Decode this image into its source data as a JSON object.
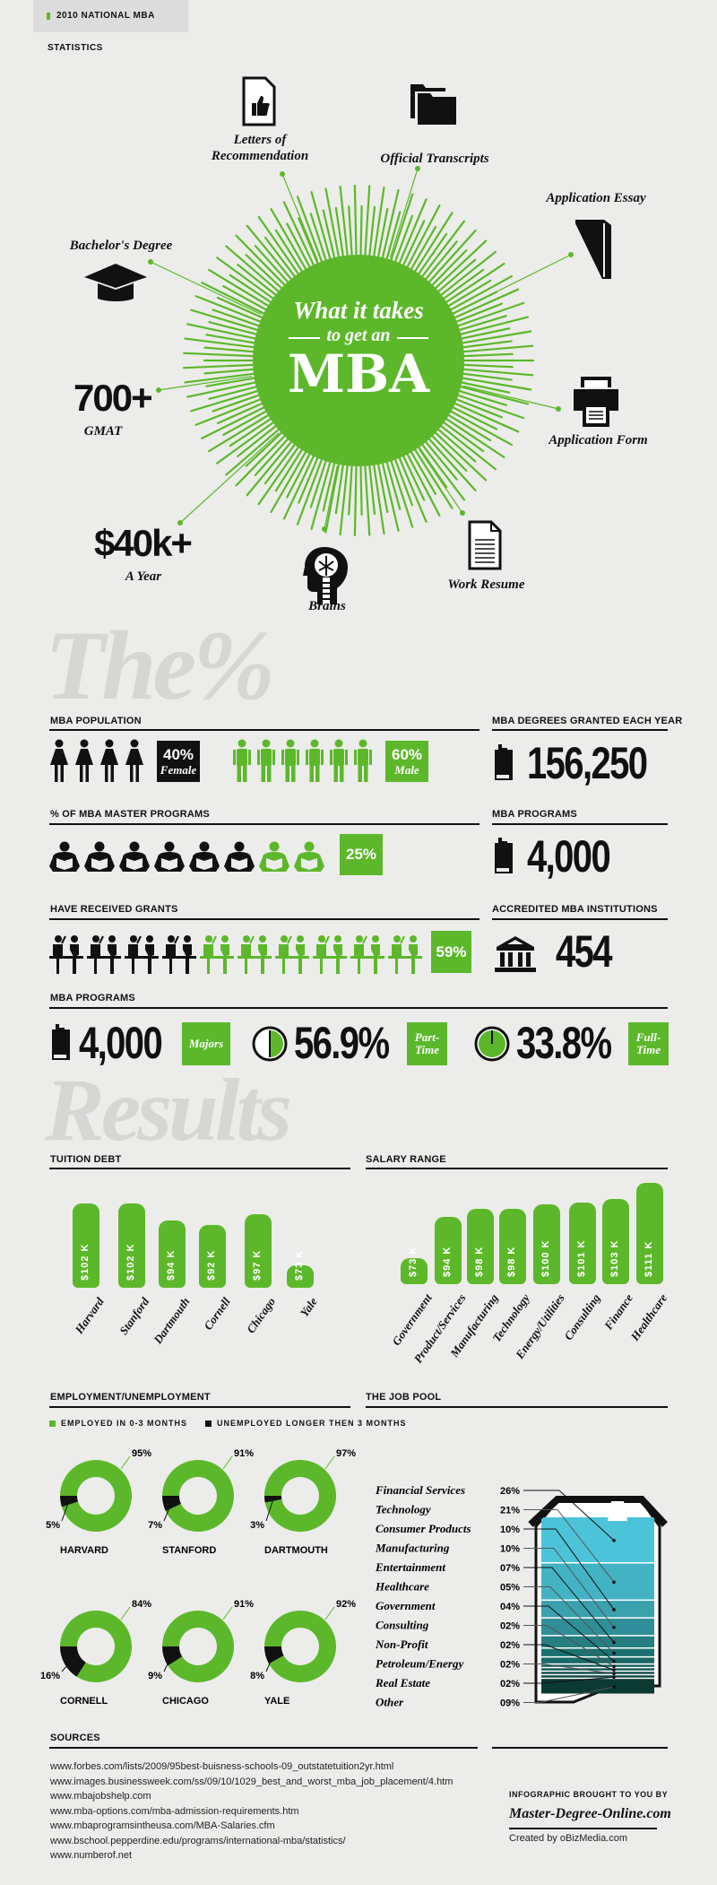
{
  "header_tag": "2010 NATIONAL MBA STATISTICS",
  "hero": {
    "line1": "What it takes",
    "line2": "to get an",
    "main": "MBA",
    "accent": "#5cb82a"
  },
  "requirements": {
    "letters": {
      "label": "Letters of Recommendation",
      "icon": "thumbs-up-document-icon"
    },
    "transcripts": {
      "label": "Official Transcripts",
      "icon": "folders-icon"
    },
    "essay": {
      "label": "Application Essay",
      "icon": "book-icon"
    },
    "bachelor": {
      "label": "Bachelor's Degree",
      "icon": "graduation-cap-icon"
    },
    "gmat": {
      "value": "700+",
      "label": "GMAT"
    },
    "form": {
      "label": "Application Form",
      "icon": "printer-icon"
    },
    "cost": {
      "value": "$40k+",
      "label": "A Year"
    },
    "brains": {
      "label": "Brains",
      "icon": "brain-head-icon"
    },
    "resume": {
      "label": "Work Resume",
      "icon": "document-icon"
    }
  },
  "watermark1": "The%",
  "watermark2": "Results",
  "stats": {
    "population": {
      "title": "MBA POPULATION",
      "female_pct": "40%",
      "female_label": "Female",
      "male_pct": "60%",
      "male_label": "Male",
      "female_icons": 4,
      "male_icons": 6
    },
    "master": {
      "title": "% OF MBA MASTER PROGRAMS",
      "pct": "25%",
      "icons_total": 8,
      "icons_highlight": 2
    },
    "grants": {
      "title": "HAVE RECEIVED GRANTS",
      "pct": "59%",
      "icons_total": 10,
      "icons_highlight": 6
    },
    "degrees": {
      "title": "MBA DEGREES GRANTED EACH YEAR",
      "value": "156,250"
    },
    "programs_right": {
      "title": "MBA PROGRAMS",
      "value": "4,000"
    },
    "accredited": {
      "title": "ACCREDITED MBA INSTITUTIONS",
      "value": "454"
    },
    "programs": {
      "title": "MBA PROGRAMS",
      "majors_value": "4,000",
      "majors_label": "Majors",
      "part_value": "56.9%",
      "part_label": "Part-Time",
      "part_fraction": 0.5,
      "full_value": "33.8%",
      "full_label": "Full-Time",
      "full_fraction": 1.0
    }
  },
  "chart_data": [
    {
      "type": "bar",
      "title": "TUITION DEBT",
      "categories": [
        "Harvard",
        "Stanford",
        "Dartmouth",
        "Cornell",
        "Chicago",
        "Yale"
      ],
      "values": [
        102,
        102,
        94,
        92,
        97,
        73
      ],
      "labels": [
        "$102 K",
        "$102 K",
        "$94 K",
        "$92 K",
        "$97 K",
        "$73 K"
      ],
      "unit": "K USD"
    },
    {
      "type": "bar",
      "title": "SALARY RANGE",
      "categories": [
        "Government",
        "Product/Services",
        "Manufacturing",
        "Technology",
        "Energy/Utilities",
        "Consulting",
        "Finance",
        "Healthcare"
      ],
      "values": [
        73,
        94,
        98,
        98,
        100,
        101,
        103,
        111
      ],
      "labels": [
        "$73 K",
        "$94 K",
        "$98 K",
        "$98 K",
        "$100 K",
        "$101 K",
        "$103 K",
        "$111 K"
      ],
      "unit": "K USD"
    },
    {
      "type": "pie",
      "title": "EMPLOYMENT/UNEMPLOYMENT",
      "legend": [
        "EMPLOYED IN 0-3 MONTHS",
        "UNEMPLOYED LONGER THEN 3 MONTHS"
      ],
      "colors": [
        "#5cb82a",
        "#111111"
      ],
      "schools": [
        {
          "name": "HARVARD",
          "employed": 95,
          "unemployed": 5
        },
        {
          "name": "STANFORD",
          "employed": 91,
          "unemployed": 7
        },
        {
          "name": "DARTMOUTH",
          "employed": 97,
          "unemployed": 3
        },
        {
          "name": "CORNELL",
          "employed": 84,
          "unemployed": 16
        },
        {
          "name": "CHICAGO",
          "employed": 91,
          "unemployed": 9
        },
        {
          "name": "YALE",
          "employed": 92,
          "unemployed": 8
        }
      ]
    },
    {
      "type": "bar",
      "title": "THE JOB POOL",
      "categories": [
        "Financial Services",
        "Technology",
        "Consumer Products",
        "Manufacturing",
        "Entertainment",
        "Healthcare",
        "Government",
        "Consulting",
        "Non-Profit",
        "Petroleum/Energy",
        "Real Estate",
        "Other"
      ],
      "values": [
        26,
        21,
        10,
        10,
        7,
        5,
        4,
        2,
        2,
        2,
        2,
        9
      ],
      "labels": [
        "26%",
        "21%",
        "10%",
        "10%",
        "07%",
        "05%",
        "04%",
        "02%",
        "02%",
        "02%",
        "02%",
        "09%"
      ]
    }
  ],
  "sources": {
    "title": "SOURCES",
    "items": [
      "www.forbes.com/lists/2009/95best-buisness-schools-09_outstatetuition2yr.html",
      "www.images.businessweek.com/ss/09/10/1029_best_and_worst_mba_job_placement/4.htm",
      "www.mbajobshelp.com",
      "www.mba-options.com/mba-admission-requirements.htm",
      "www.mbaprogramsintheusa.com/MBA-Salaries.cfm",
      "www.bschool.pepperdine.edu/programs/international-mba/statistics/",
      "www.numberof.net"
    ]
  },
  "credits": {
    "brought_by": "INFOGRAPHIC BROUGHT TO YOU BY",
    "site": "Master-Degree-Online.com",
    "created": "Created by oBizMedia.com"
  }
}
